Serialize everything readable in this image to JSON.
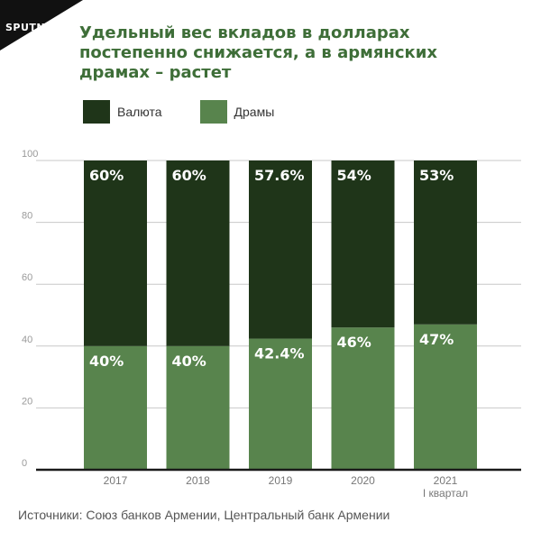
{
  "brand": {
    "logo_text": "SPUTNIK"
  },
  "title_lines": [
    "Удельный вес вкладов в долларах",
    "постепенно снижается, а в армянских",
    "драмах – растет"
  ],
  "source_text": "Источники: Союз банков Армении, Центральный банк Армении",
  "colors": {
    "valuta": "#1f3519",
    "dramy": "#58844d",
    "title": "#3e6e38",
    "grid": "#c8c8c8",
    "axis": "#1a1a1a"
  },
  "chart_data": {
    "type": "bar",
    "stacked": true,
    "title": "Удельный вес вкладов в долларах постепенно снижается, а в армянских драмах – растет",
    "categories": [
      {
        "label": "2017",
        "sublabel": ""
      },
      {
        "label": "2018",
        "sublabel": ""
      },
      {
        "label": "2019",
        "sublabel": ""
      },
      {
        "label": "2020",
        "sublabel": ""
      },
      {
        "label": "2021",
        "sublabel": "I квартал"
      }
    ],
    "series": [
      {
        "name": "Драмы",
        "values": [
          40,
          40,
          42.4,
          46,
          47
        ],
        "labels": [
          "40%",
          "40%",
          "42.4%",
          "46%",
          "47%"
        ]
      },
      {
        "name": "Валюта",
        "values": [
          60,
          60,
          57.6,
          54,
          53
        ],
        "labels": [
          "60%",
          "60%",
          "57.6%",
          "54%",
          "53%"
        ]
      }
    ],
    "ylim": [
      0,
      100
    ],
    "yticks": [
      0,
      20,
      40,
      60,
      80,
      100
    ],
    "grid": true,
    "legend_position": "top-left"
  }
}
